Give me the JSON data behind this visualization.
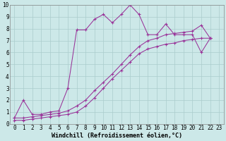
{
  "xlabel": "Windchill (Refroidissement éolien,°C)",
  "background_color": "#cce8e8",
  "grid_color": "#aacccc",
  "line_color": "#993399",
  "xlim": [
    -0.5,
    23.5
  ],
  "ylim": [
    0,
    10
  ],
  "xticks": [
    0,
    1,
    2,
    3,
    4,
    5,
    6,
    7,
    8,
    9,
    10,
    11,
    12,
    13,
    14,
    15,
    16,
    17,
    18,
    19,
    20,
    21,
    22,
    23
  ],
  "yticks": [
    0,
    1,
    2,
    3,
    4,
    5,
    6,
    7,
    8,
    9,
    10
  ],
  "series": [
    [
      0.5,
      2.0,
      0.8,
      0.8,
      1.0,
      1.1,
      3.0,
      7.9,
      7.9,
      8.8,
      9.2,
      8.5,
      9.2,
      10.0,
      9.2,
      7.5,
      7.5,
      8.4,
      7.5,
      7.5,
      7.5,
      6.0,
      7.2
    ],
    [
      0.5,
      0.5,
      0.6,
      0.7,
      0.8,
      0.9,
      1.1,
      1.5,
      2.0,
      2.8,
      3.5,
      4.2,
      5.0,
      5.8,
      6.5,
      7.0,
      7.2,
      7.5,
      7.6,
      7.7,
      7.8,
      8.3,
      7.2
    ],
    [
      0.3,
      0.3,
      0.4,
      0.5,
      0.6,
      0.7,
      0.8,
      1.0,
      1.5,
      2.2,
      3.0,
      3.8,
      4.5,
      5.2,
      5.9,
      6.3,
      6.5,
      6.7,
      6.8,
      7.0,
      7.1,
      7.2,
      7.2
    ]
  ],
  "series_x": [
    [
      0,
      1,
      2,
      3,
      4,
      5,
      6,
      7,
      8,
      9,
      10,
      11,
      12,
      13,
      14,
      15,
      16,
      17,
      18,
      19,
      20,
      21,
      22
    ],
    [
      0,
      1,
      2,
      3,
      4,
      5,
      6,
      7,
      8,
      9,
      10,
      11,
      12,
      13,
      14,
      15,
      16,
      17,
      18,
      19,
      20,
      21,
      22
    ],
    [
      0,
      1,
      2,
      3,
      4,
      5,
      6,
      7,
      8,
      9,
      10,
      11,
      12,
      13,
      14,
      15,
      16,
      17,
      18,
      19,
      20,
      21,
      22
    ]
  ],
  "tick_fontsize": 5.5,
  "label_fontsize": 6,
  "marker": "+",
  "markersize": 3,
  "linewidth": 0.75
}
